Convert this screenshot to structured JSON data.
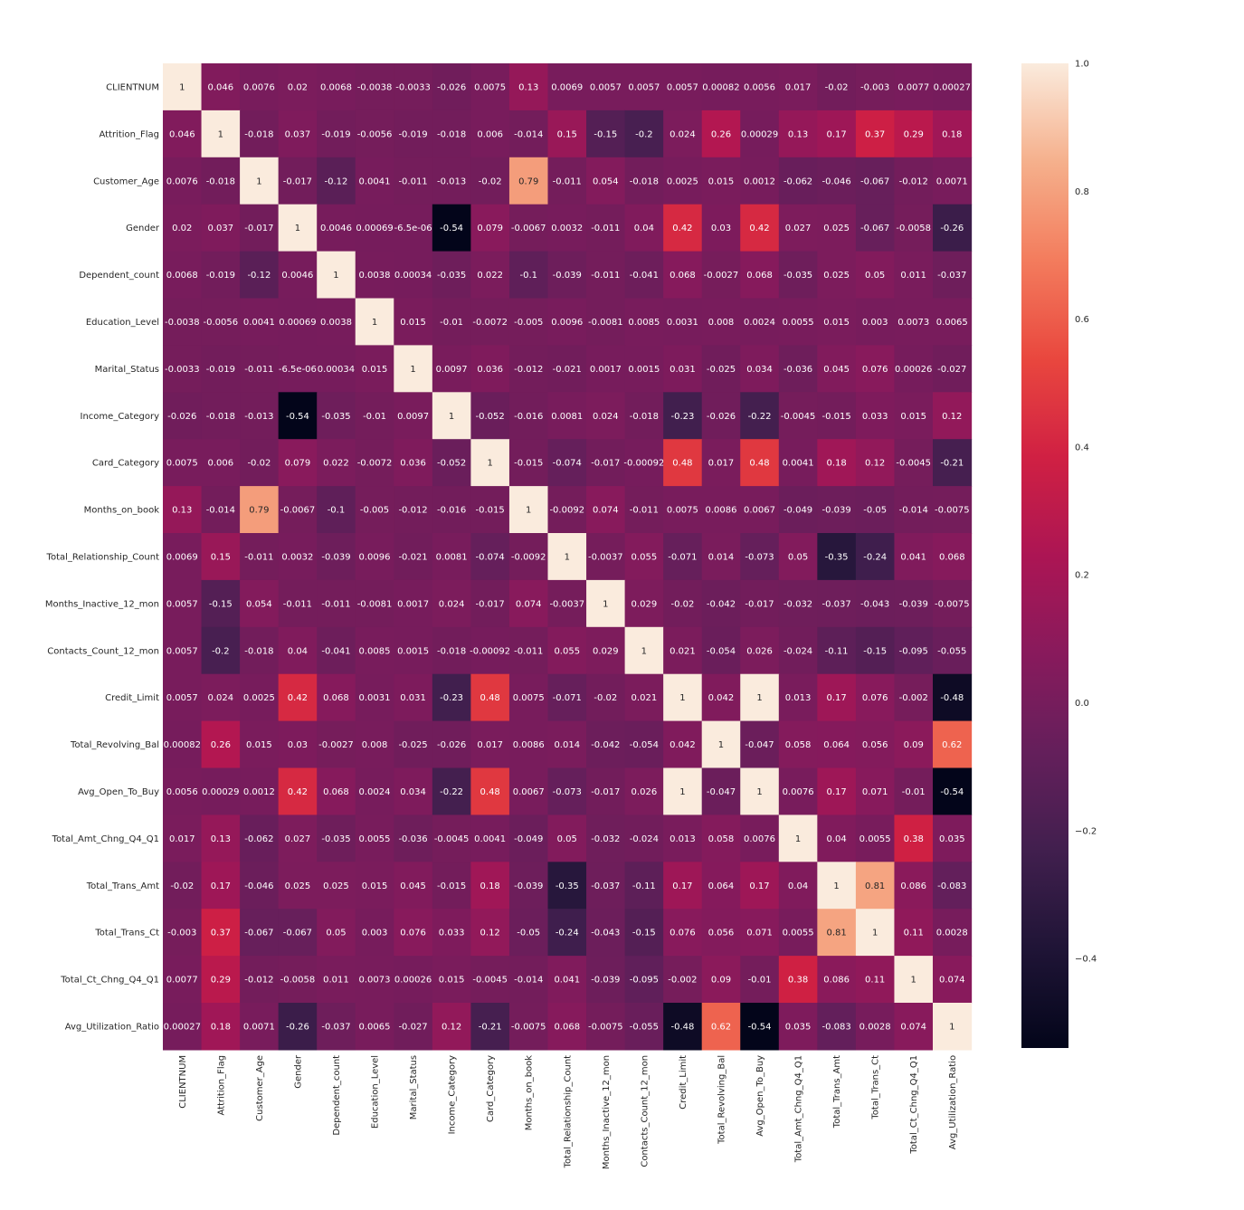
{
  "chart_data": {
    "type": "heatmap",
    "title": "",
    "xlabel": "",
    "ylabel": "",
    "variables": [
      "CLIENTNUM",
      "Attrition_Flag",
      "Customer_Age",
      "Gender",
      "Dependent_count",
      "Education_Level",
      "Marital_Status",
      "Income_Category",
      "Card_Category",
      "Months_on_book",
      "Total_Relationship_Count",
      "Months_Inactive_12_mon",
      "Contacts_Count_12_mon",
      "Credit_Limit",
      "Total_Revolving_Bal",
      "Avg_Open_To_Buy",
      "Total_Amt_Chng_Q4_Q1",
      "Total_Trans_Amt",
      "Total_Trans_Ct",
      "Total_Ct_Chng_Q4_Q1",
      "Avg_Utilization_Ratio"
    ],
    "labels": [
      [
        "1",
        "0.046",
        "0.0076",
        "0.02",
        "0.0068",
        "-0.0038",
        "-0.0033",
        "-0.026",
        "0.0075",
        "0.13",
        "0.0069",
        "0.0057",
        "0.0057",
        "0.0057",
        "0.00082",
        "0.0056",
        "0.017",
        "-0.02",
        "-0.003",
        "0.0077",
        "0.00027"
      ],
      [
        "0.046",
        "1",
        "-0.018",
        "0.037",
        "-0.019",
        "-0.0056",
        "-0.019",
        "-0.018",
        "0.006",
        "-0.014",
        "0.15",
        "-0.15",
        "-0.2",
        "0.024",
        "0.26",
        "0.00029",
        "0.13",
        "0.17",
        "0.37",
        "0.29",
        "0.18"
      ],
      [
        "0.0076",
        "-0.018",
        "1",
        "-0.017",
        "-0.12",
        "0.0041",
        "-0.011",
        "-0.013",
        "-0.02",
        "0.79",
        "-0.011",
        "0.054",
        "-0.018",
        "0.0025",
        "0.015",
        "0.0012",
        "-0.062",
        "-0.046",
        "-0.067",
        "-0.012",
        "0.0071"
      ],
      [
        "0.02",
        "0.037",
        "-0.017",
        "1",
        "0.0046",
        "0.00069",
        "-6.5e-06",
        "-0.54",
        "0.079",
        "-0.0067",
        "0.0032",
        "-0.011",
        "0.04",
        "0.42",
        "0.03",
        "0.42",
        "0.027",
        "0.025",
        "-0.067",
        "-0.0058",
        "-0.26"
      ],
      [
        "0.0068",
        "-0.019",
        "-0.12",
        "0.0046",
        "1",
        "0.0038",
        "0.00034",
        "-0.035",
        "0.022",
        "-0.1",
        "-0.039",
        "-0.011",
        "-0.041",
        "0.068",
        "-0.0027",
        "0.068",
        "-0.035",
        "0.025",
        "0.05",
        "0.011",
        "-0.037"
      ],
      [
        "-0.0038",
        "-0.0056",
        "0.0041",
        "0.00069",
        "0.0038",
        "1",
        "0.015",
        "-0.01",
        "-0.0072",
        "-0.005",
        "0.0096",
        "-0.0081",
        "0.0085",
        "0.0031",
        "0.008",
        "0.0024",
        "0.0055",
        "0.015",
        "0.003",
        "0.0073",
        "0.0065"
      ],
      [
        "-0.0033",
        "-0.019",
        "-0.011",
        "-6.5e-06",
        "0.00034",
        "0.015",
        "1",
        "0.0097",
        "0.036",
        "-0.012",
        "-0.021",
        "0.0017",
        "0.0015",
        "0.031",
        "-0.025",
        "0.034",
        "-0.036",
        "0.045",
        "0.076",
        "0.00026",
        "-0.027"
      ],
      [
        "-0.026",
        "-0.018",
        "-0.013",
        "-0.54",
        "-0.035",
        "-0.01",
        "0.0097",
        "1",
        "-0.052",
        "-0.016",
        "0.0081",
        "0.024",
        "-0.018",
        "-0.23",
        "-0.026",
        "-0.22",
        "-0.0045",
        "-0.015",
        "0.033",
        "0.015",
        "0.12"
      ],
      [
        "0.0075",
        "0.006",
        "-0.02",
        "0.079",
        "0.022",
        "-0.0072",
        "0.036",
        "-0.052",
        "1",
        "-0.015",
        "-0.074",
        "-0.017",
        "-0.00092",
        "0.48",
        "0.017",
        "0.48",
        "0.0041",
        "0.18",
        "0.12",
        "-0.0045",
        "-0.21"
      ],
      [
        "0.13",
        "-0.014",
        "0.79",
        "-0.0067",
        "-0.1",
        "-0.005",
        "-0.012",
        "-0.016",
        "-0.015",
        "1",
        "-0.0092",
        "0.074",
        "-0.011",
        "0.0075",
        "0.0086",
        "0.0067",
        "-0.049",
        "-0.039",
        "-0.05",
        "-0.014",
        "-0.0075"
      ],
      [
        "0.0069",
        "0.15",
        "-0.011",
        "0.0032",
        "-0.039",
        "0.0096",
        "-0.021",
        "0.0081",
        "-0.074",
        "-0.0092",
        "1",
        "-0.0037",
        "0.055",
        "-0.071",
        "0.014",
        "-0.073",
        "0.05",
        "-0.35",
        "-0.24",
        "0.041",
        "0.068"
      ],
      [
        "0.0057",
        "-0.15",
        "0.054",
        "-0.011",
        "-0.011",
        "-0.0081",
        "0.0017",
        "0.024",
        "-0.017",
        "0.074",
        "-0.0037",
        "1",
        "0.029",
        "-0.02",
        "-0.042",
        "-0.017",
        "-0.032",
        "-0.037",
        "-0.043",
        "-0.039",
        "-0.0075"
      ],
      [
        "0.0057",
        "-0.2",
        "-0.018",
        "0.04",
        "-0.041",
        "0.0085",
        "0.0015",
        "-0.018",
        "-0.00092",
        "-0.011",
        "0.055",
        "0.029",
        "1",
        "0.021",
        "-0.054",
        "0.026",
        "-0.024",
        "-0.11",
        "-0.15",
        "-0.095",
        "-0.055"
      ],
      [
        "0.0057",
        "0.024",
        "0.0025",
        "0.42",
        "0.068",
        "0.0031",
        "0.031",
        "-0.23",
        "0.48",
        "0.0075",
        "-0.071",
        "-0.02",
        "0.021",
        "1",
        "0.042",
        "1",
        "0.013",
        "0.17",
        "0.076",
        "-0.002",
        "-0.48"
      ],
      [
        "0.00082",
        "0.26",
        "0.015",
        "0.03",
        "-0.0027",
        "0.008",
        "-0.025",
        "-0.026",
        "0.017",
        "0.0086",
        "0.014",
        "-0.042",
        "-0.054",
        "0.042",
        "1",
        "-0.047",
        "0.058",
        "0.064",
        "0.056",
        "0.09",
        "0.62"
      ],
      [
        "0.0056",
        "0.00029",
        "0.0012",
        "0.42",
        "0.068",
        "0.0024",
        "0.034",
        "-0.22",
        "0.48",
        "0.0067",
        "-0.073",
        "-0.017",
        "0.026",
        "1",
        "-0.047",
        "1",
        "0.0076",
        "0.17",
        "0.071",
        "-0.01",
        "-0.54"
      ],
      [
        "0.017",
        "0.13",
        "-0.062",
        "0.027",
        "-0.035",
        "0.0055",
        "-0.036",
        "-0.0045",
        "0.0041",
        "-0.049",
        "0.05",
        "-0.032",
        "-0.024",
        "0.013",
        "0.058",
        "0.0076",
        "1",
        "0.04",
        "0.0055",
        "0.38",
        "0.035"
      ],
      [
        "-0.02",
        "0.17",
        "-0.046",
        "0.025",
        "0.025",
        "0.015",
        "0.045",
        "-0.015",
        "0.18",
        "-0.039",
        "-0.35",
        "-0.037",
        "-0.11",
        "0.17",
        "0.064",
        "0.17",
        "0.04",
        "1",
        "0.81",
        "0.086",
        "-0.083"
      ],
      [
        "-0.003",
        "0.37",
        "-0.067",
        "-0.067",
        "0.05",
        "0.003",
        "0.076",
        "0.033",
        "0.12",
        "-0.05",
        "-0.24",
        "-0.043",
        "-0.15",
        "0.076",
        "0.056",
        "0.071",
        "0.0055",
        "0.81",
        "1",
        "0.11",
        "0.0028"
      ],
      [
        "0.0077",
        "0.29",
        "-0.012",
        "-0.0058",
        "0.011",
        "0.0073",
        "0.00026",
        "0.015",
        "-0.0045",
        "-0.014",
        "0.041",
        "-0.039",
        "-0.095",
        "-0.002",
        "0.09",
        "-0.01",
        "0.38",
        "0.086",
        "0.11",
        "1",
        "0.074"
      ],
      [
        "0.00027",
        "0.18",
        "0.0071",
        "-0.26",
        "-0.037",
        "0.0065",
        "-0.027",
        "0.12",
        "-0.21",
        "-0.0075",
        "0.068",
        "-0.0075",
        "-0.055",
        "-0.48",
        "0.62",
        "-0.54",
        "0.035",
        "-0.083",
        "0.0028",
        "0.074",
        "1"
      ]
    ],
    "colorbar": {
      "min": -0.54,
      "max": 1.0,
      "ticks": [
        "1.0",
        "0.8",
        "0.6",
        "0.4",
        "0.2",
        "0.0",
        "−0.2",
        "−0.4"
      ]
    },
    "colormap": "rocket",
    "grid": false,
    "legend": "colorbar-right"
  }
}
